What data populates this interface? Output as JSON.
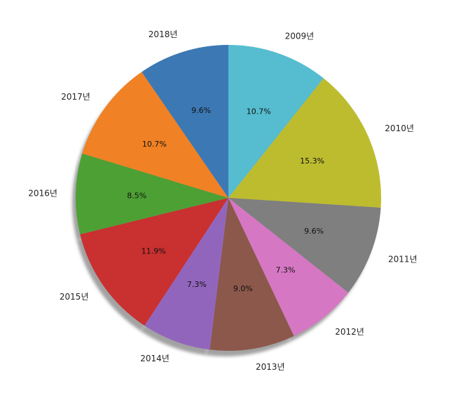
{
  "chart_data": {
    "type": "pie",
    "title": "",
    "labels": [
      "2009년",
      "2010년",
      "2011년",
      "2012년",
      "2013년",
      "2014년",
      "2015년",
      "2016년",
      "2017년",
      "2018년"
    ],
    "values": [
      10.7,
      15.3,
      9.6,
      7.3,
      9.0,
      7.3,
      11.9,
      8.5,
      10.7,
      9.6
    ],
    "percent_labels": [
      "10.7%",
      "15.3%",
      "9.6%",
      "7.3%",
      "9.0%",
      "7.3%",
      "11.9%",
      "8.5%",
      "10.7%",
      "9.6%"
    ],
    "colors": [
      "#56bccf",
      "#bdbc2f",
      "#7f7f7f",
      "#d677c3",
      "#8c584c",
      "#9265bd",
      "#c93030",
      "#4da034",
      "#f08124",
      "#3c78b4"
    ],
    "start": "top",
    "direction": "clockwise",
    "shadow": true
  }
}
